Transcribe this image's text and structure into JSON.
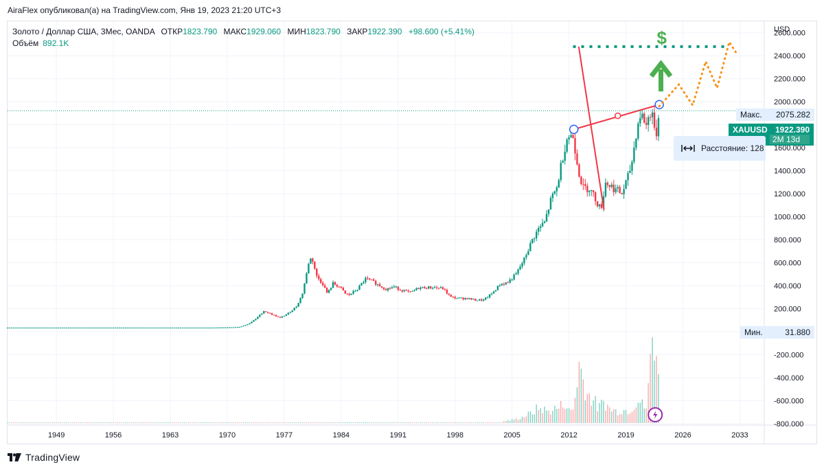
{
  "header": {
    "published_text": "AiraFlex опубликовал(а) на TradingView.com, Янв 19, 2023 21:20 UTC+3"
  },
  "legend": {
    "symbol": "Золото / Доллар США, 3Мес, OANDA",
    "open_label": "ОТКР",
    "open_value": "1823.790",
    "high_label": "МАКС",
    "high_value": "1929.060",
    "low_label": "МИН",
    "low_value": "1823.790",
    "close_label": "ЗАКР",
    "close_value": "1922.390",
    "change": "+98.600 (+5.41%)",
    "volume_label": "Объём",
    "volume_value": "892.1K"
  },
  "price_axis": {
    "currency": "USD",
    "max_label": "Макс.",
    "max_value": "2075.282",
    "min_label": "Мин.",
    "min_value": "31.880",
    "current_symbol": "XAUUSD",
    "current_price": "1922.390",
    "current_timer": "2M 13d"
  },
  "measure_tooltip": {
    "text": "Расстояние: 128"
  },
  "annotations": {
    "dollar_sign": "$"
  },
  "footer": {
    "brand": "TradingView"
  },
  "colors": {
    "up": "#089981",
    "down": "#f23645",
    "trendline": "#f23645",
    "target": "#089981",
    "projection": "#f7931a",
    "arrow": "#4caf50"
  },
  "chart_data": {
    "type": "candlestick",
    "title": "Золото / Доллар США, 3Мес, OANDA",
    "ylabel": "USD",
    "ylim": [
      -800,
      2700
    ],
    "xlim": [
      1943,
      2036
    ],
    "y_ticks": [
      "2600.000",
      "2400.000",
      "2200.000",
      "2000.000",
      "1600.000",
      "1400.000",
      "1200.000",
      "1000.000",
      "800.000",
      "600.000",
      "400.000",
      "200.000",
      "-200.000",
      "-400.000",
      "-600.000",
      "-800.000"
    ],
    "x_ticks": [
      "1949",
      "1956",
      "1963",
      "1970",
      "1977",
      "1984",
      "1991",
      "1998",
      "2005",
      "2012",
      "2019",
      "2026",
      "2033"
    ],
    "price_path": [
      [
        1943,
        35
      ],
      [
        1968,
        35
      ],
      [
        1970,
        37
      ],
      [
        1971.5,
        42
      ],
      [
        1972.5,
        64
      ],
      [
        1973.5,
        110
      ],
      [
        1974.5,
        180
      ],
      [
        1975.5,
        150
      ],
      [
        1976.5,
        120
      ],
      [
        1977.5,
        160
      ],
      [
        1978.5,
        220
      ],
      [
        1979.2,
        320
      ],
      [
        1979.8,
        520
      ],
      [
        1980.1,
        640
      ],
      [
        1980.5,
        620
      ],
      [
        1981,
        480
      ],
      [
        1981.8,
        410
      ],
      [
        1982.3,
        330
      ],
      [
        1983,
        420
      ],
      [
        1983.8,
        390
      ],
      [
        1984.5,
        330
      ],
      [
        1985,
        320
      ],
      [
        1986,
        370
      ],
      [
        1987,
        460
      ],
      [
        1987.8,
        440
      ],
      [
        1988.5,
        410
      ],
      [
        1989.5,
        370
      ],
      [
        1990.5,
        390
      ],
      [
        1991.5,
        360
      ],
      [
        1992.5,
        340
      ],
      [
        1993.5,
        380
      ],
      [
        1994.5,
        385
      ],
      [
        1995.5,
        385
      ],
      [
        1996.5,
        375
      ],
      [
        1997.5,
        300
      ],
      [
        1998.5,
        290
      ],
      [
        1999.5,
        290
      ],
      [
        2000.5,
        275
      ],
      [
        2001.5,
        275
      ],
      [
        2002.5,
        330
      ],
      [
        2003.5,
        410
      ],
      [
        2004.5,
        430
      ],
      [
        2005.5,
        500
      ],
      [
        2006.5,
        630
      ],
      [
        2007.5,
        800
      ],
      [
        2008.3,
        900
      ],
      [
        2009,
        950
      ],
      [
        2009.8,
        1150
      ],
      [
        2010.5,
        1250
      ],
      [
        2011.3,
        1550
      ],
      [
        2011.8,
        1700
      ],
      [
        2012.5,
        1700
      ],
      [
        2013.2,
        1400
      ],
      [
        2013.7,
        1250
      ],
      [
        2014.5,
        1250
      ],
      [
        2015.3,
        1150
      ],
      [
        2015.9,
        1060
      ],
      [
        2016.5,
        1300
      ],
      [
        2017.5,
        1250
      ],
      [
        2018.5,
        1200
      ],
      [
        2019.3,
        1350
      ],
      [
        2019.8,
        1500
      ],
      [
        2020.3,
        1750
      ],
      [
        2020.8,
        1900
      ],
      [
        2021.5,
        1800
      ],
      [
        2022.2,
        1950
      ],
      [
        2022.6,
        1650
      ],
      [
        2022.9,
        1820
      ],
      [
        2023.1,
        1922
      ]
    ],
    "volume_path": [
      [
        2004,
        40
      ],
      [
        2005.5,
        80
      ],
      [
        2006.5,
        140
      ],
      [
        2007.5,
        220
      ],
      [
        2008.2,
        310
      ],
      [
        2008.8,
        290
      ],
      [
        2009.5,
        240
      ],
      [
        2010.2,
        300
      ],
      [
        2010.8,
        320
      ],
      [
        2011.5,
        450
      ],
      [
        2012,
        250
      ],
      [
        2012.6,
        300
      ],
      [
        2013.2,
        1250
      ],
      [
        2013.7,
        950
      ],
      [
        2014.3,
        600
      ],
      [
        2015,
        500
      ],
      [
        2015.6,
        300
      ],
      [
        2016.3,
        450
      ],
      [
        2017,
        300
      ],
      [
        2017.8,
        250
      ],
      [
        2018.5,
        280
      ],
      [
        2019.2,
        260
      ],
      [
        2019.8,
        330
      ],
      [
        2020.4,
        520
      ],
      [
        2021,
        380
      ],
      [
        2021.6,
        300
      ],
      [
        2022.2,
        1850
      ],
      [
        2022.6,
        1900
      ],
      [
        2023.1,
        580
      ]
    ],
    "drawings": {
      "measure_line": {
        "from": [
          2012.6,
          1760
        ],
        "mid": [
          2018,
          1878
        ],
        "to": [
          2023.1,
          1975
        ]
      },
      "fall_line": {
        "from": [
          2013.2,
          2480
        ],
        "to": [
          2016.3,
          1060
        ]
      },
      "target_level": 2480,
      "target_range": [
        2012.5,
        2031.5
      ],
      "projection_path": [
        [
          2023.1,
          1960
        ],
        [
          2025.5,
          2150
        ],
        [
          2027.2,
          1970
        ],
        [
          2028.8,
          2350
        ],
        [
          2030.2,
          2120
        ],
        [
          2031.7,
          2520
        ],
        [
          2032.6,
          2420
        ]
      ],
      "arrow_up": {
        "x": 2023.3,
        "y_from": 2090,
        "y_to": 2330
      }
    }
  }
}
